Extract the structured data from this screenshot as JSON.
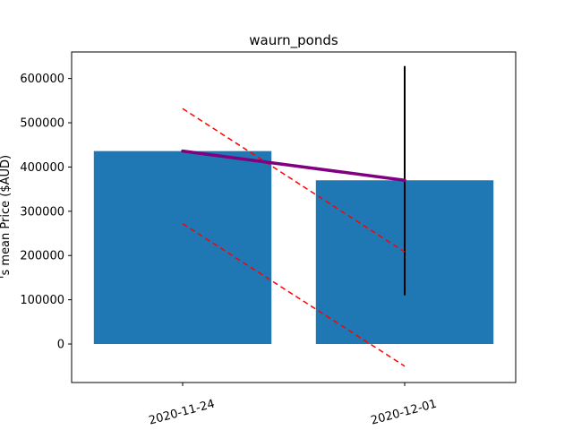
{
  "chart_data": {
    "type": "bar",
    "title": "waurn_ponds",
    "xlabel": "",
    "ylabel": "'s mean Price ($AUD)",
    "categories": [
      "2020-11-24",
      "2020-12-01"
    ],
    "values": [
      436000,
      370000
    ],
    "ylim": [
      -87000,
      660000
    ],
    "yticks": [
      0,
      100000,
      200000,
      300000,
      400000,
      500000,
      600000
    ],
    "ytick_labels": [
      "0",
      "100000",
      "200000",
      "300000",
      "400000",
      "500000",
      "600000"
    ],
    "error_bar": {
      "category": "2020-12-01",
      "low": 110000,
      "high": 628000
    },
    "mean_line": {
      "points": [
        436000,
        370000
      ]
    },
    "band_upper": {
      "points": [
        532000,
        208000
      ]
    },
    "band_lower": {
      "points": [
        272000,
        -50000
      ]
    },
    "grid": false,
    "legend": "none",
    "colors": {
      "bar": "#1f77b4",
      "mean_line": "#800080",
      "band": "#ff0000",
      "error_bar": "#000000"
    }
  }
}
